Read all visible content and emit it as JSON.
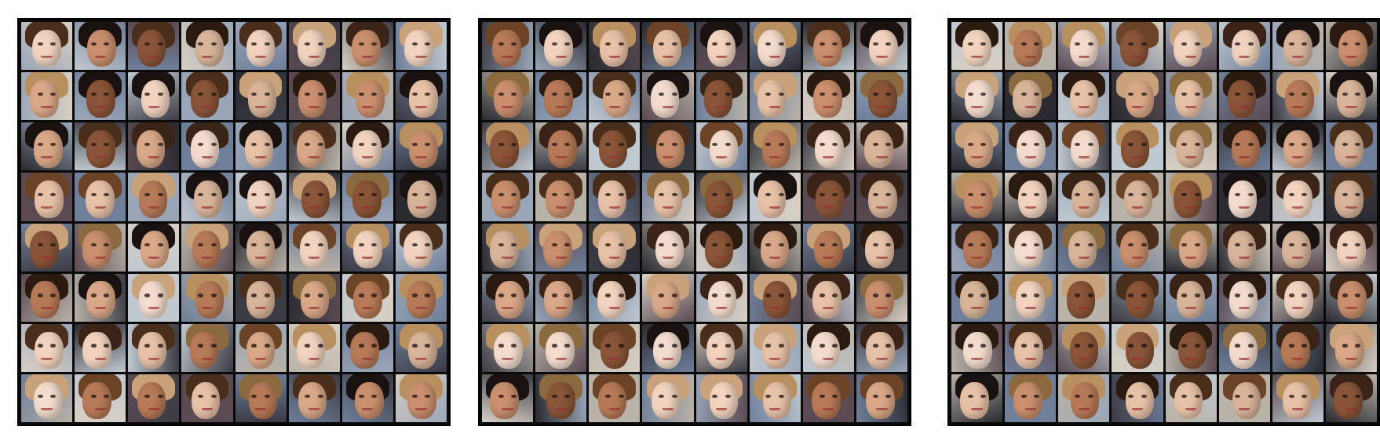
{
  "figure": {
    "panels": [
      {
        "name": "sample-grid-1",
        "rows": 8,
        "cols": 8
      },
      {
        "name": "sample-grid-2",
        "rows": 8,
        "cols": 8
      },
      {
        "name": "sample-grid-3",
        "rows": 8,
        "cols": 8
      }
    ],
    "background_color": "#ffffff",
    "grid_color": "#0a0a0a",
    "skin_palette": [
      "#e8c2a8",
      "#d9a888",
      "#c98f6e",
      "#f1d3bf",
      "#b77a58",
      "#8a5538",
      "#f3dccd",
      "#d8b49a"
    ],
    "hair_palette": [
      "#2a1a10",
      "#4a2e1c",
      "#6b4428",
      "#1a1210",
      "#8c6a40",
      "#b89060",
      "#3a2418",
      "#c7a27a"
    ],
    "backdrop_palette": [
      "#6f7f9a",
      "#b8b2a8",
      "#3b3b44",
      "#9aa6b8",
      "#d8cfc4",
      "#5a4a52",
      "#2a2a30",
      "#c0c8d0"
    ]
  }
}
